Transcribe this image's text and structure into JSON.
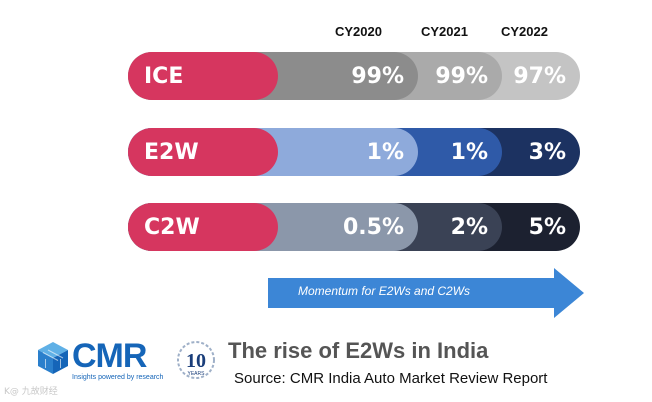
{
  "chart_data": {
    "type": "table",
    "title": "The rise of E2Ws in India",
    "source": "Source: CMR India Auto Market Review Report",
    "columns": [
      "CY2020",
      "CY2021",
      "CY2022"
    ],
    "rows": [
      {
        "name": "ICE",
        "values": [
          99,
          99,
          97
        ],
        "labels": [
          "99%",
          "99%",
          "97%"
        ],
        "colors": [
          "#8c8c8c",
          "#aaaaaa",
          "#c4c4c4"
        ]
      },
      {
        "name": "E2W",
        "values": [
          1,
          1,
          3
        ],
        "labels": [
          "1%",
          "1%",
          "3%"
        ],
        "colors": [
          "#8eaadb",
          "#2f5aa8",
          "#1c3261"
        ]
      },
      {
        "name": "C2W",
        "values": [
          0.5,
          2,
          5
        ],
        "labels": [
          "0.5%",
          "2%",
          "5%"
        ],
        "colors": [
          "#8b97aa",
          "#3a4255",
          "#1c2130"
        ]
      }
    ],
    "annotation": "Momentum for E2Ws and C2Ws"
  },
  "colors": {
    "row_label": "#d6365f",
    "arrow": "#3c86d6",
    "brand": "#1565b8"
  },
  "logo": {
    "text": "CMR",
    "tagline": "Insights powered by research",
    "anniversary": "10",
    "anniversary_sub": "YEARS"
  },
  "watermark": "K@ 九故财经"
}
